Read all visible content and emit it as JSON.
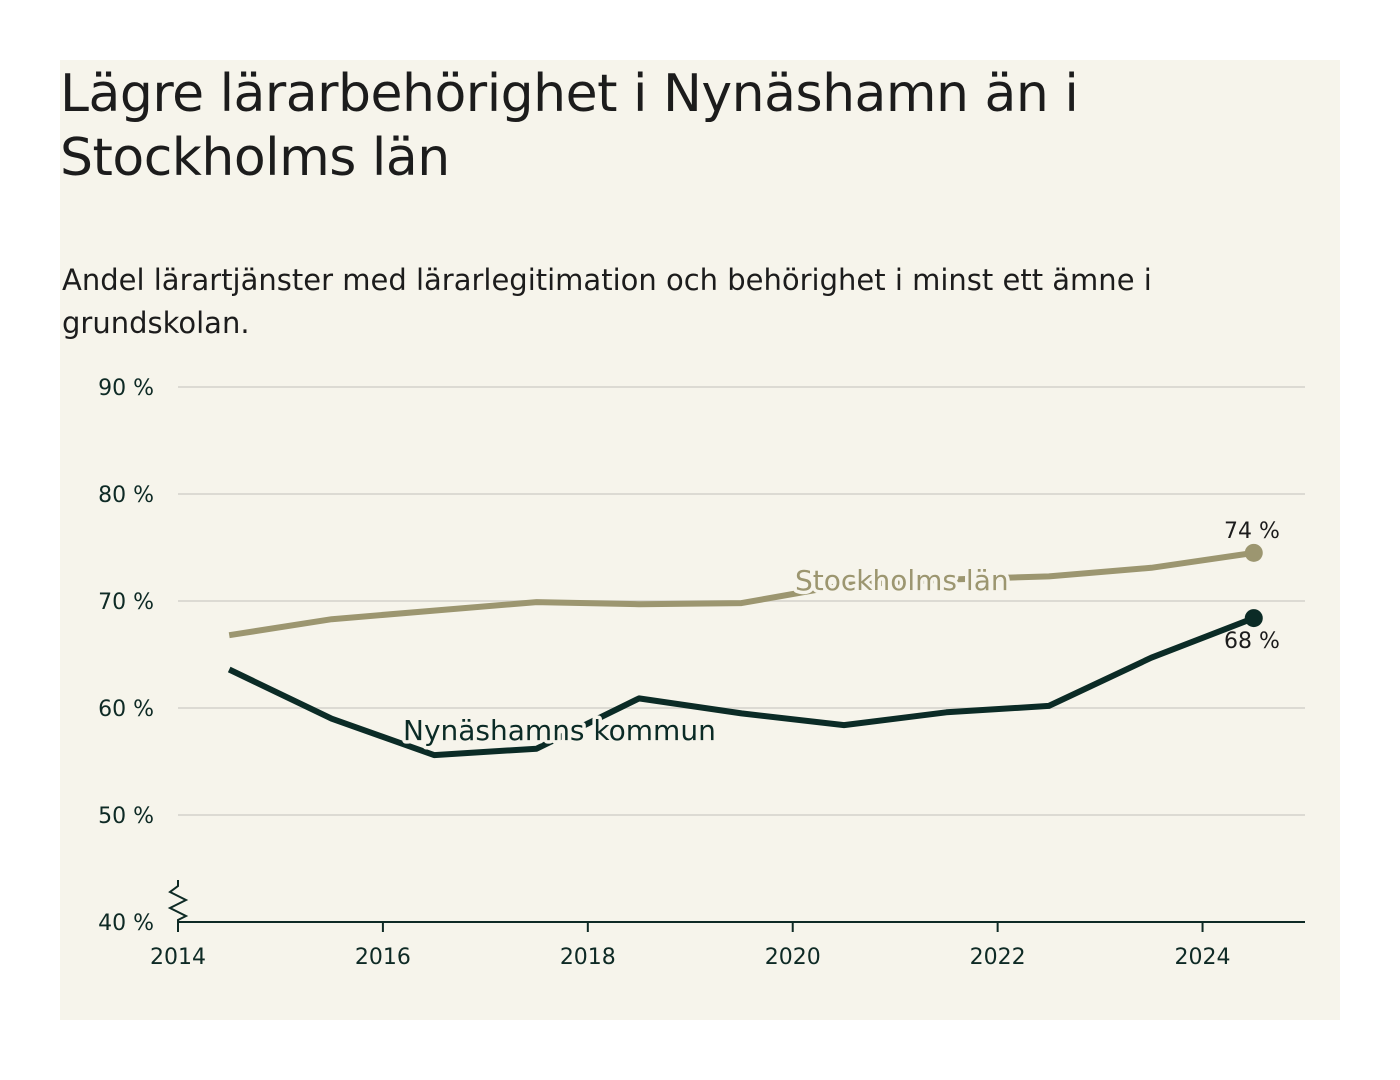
{
  "colors": {
    "background": "#f6f4eb",
    "stockholm": "#9c9670",
    "nynashamn": "#0b2b26",
    "grid": "#dcdad3",
    "axis": "#0e2a25"
  },
  "chart_data": {
    "type": "line",
    "title": "Lägre lärarbehörighet i Nynäshamn än i Stockholms län",
    "subtitle": "Andel lärartjänster med lärarlegitimation och behörighet i minst ett ämne i grundskolan.",
    "x": [
      2014.5,
      2015.5,
      2016.5,
      2017.5,
      2018.5,
      2019.5,
      2020.5,
      2021.5,
      2022.5,
      2023.5,
      2024.5
    ],
    "xticks": [
      2014,
      2016,
      2018,
      2020,
      2022,
      2024
    ],
    "xtick_labels": [
      "2014",
      "2016",
      "2018",
      "2020",
      "2022",
      "2024"
    ],
    "xlim": [
      2014,
      2025
    ],
    "yticks": [
      40,
      50,
      60,
      70,
      80,
      90
    ],
    "ytick_labels": [
      "40 %",
      "50 %",
      "60 %",
      "70 %",
      "80 %",
      "90 %"
    ],
    "ylim": [
      40,
      90
    ],
    "axis_break": true,
    "grid": true,
    "series": [
      {
        "key": "stockholm",
        "name": "Stockholms län",
        "values": [
          66.8,
          68.3,
          69.1,
          69.9,
          69.7,
          69.8,
          71.5,
          72.0,
          72.3,
          73.1,
          74.5
        ],
        "end_label": "74 %"
      },
      {
        "key": "nynashamn",
        "name": "Nynäshamns kommun",
        "values": [
          63.6,
          59.0,
          55.6,
          56.2,
          60.9,
          59.5,
          58.4,
          59.6,
          60.2,
          64.7,
          68.4
        ],
        "end_label": "68 %"
      }
    ]
  }
}
